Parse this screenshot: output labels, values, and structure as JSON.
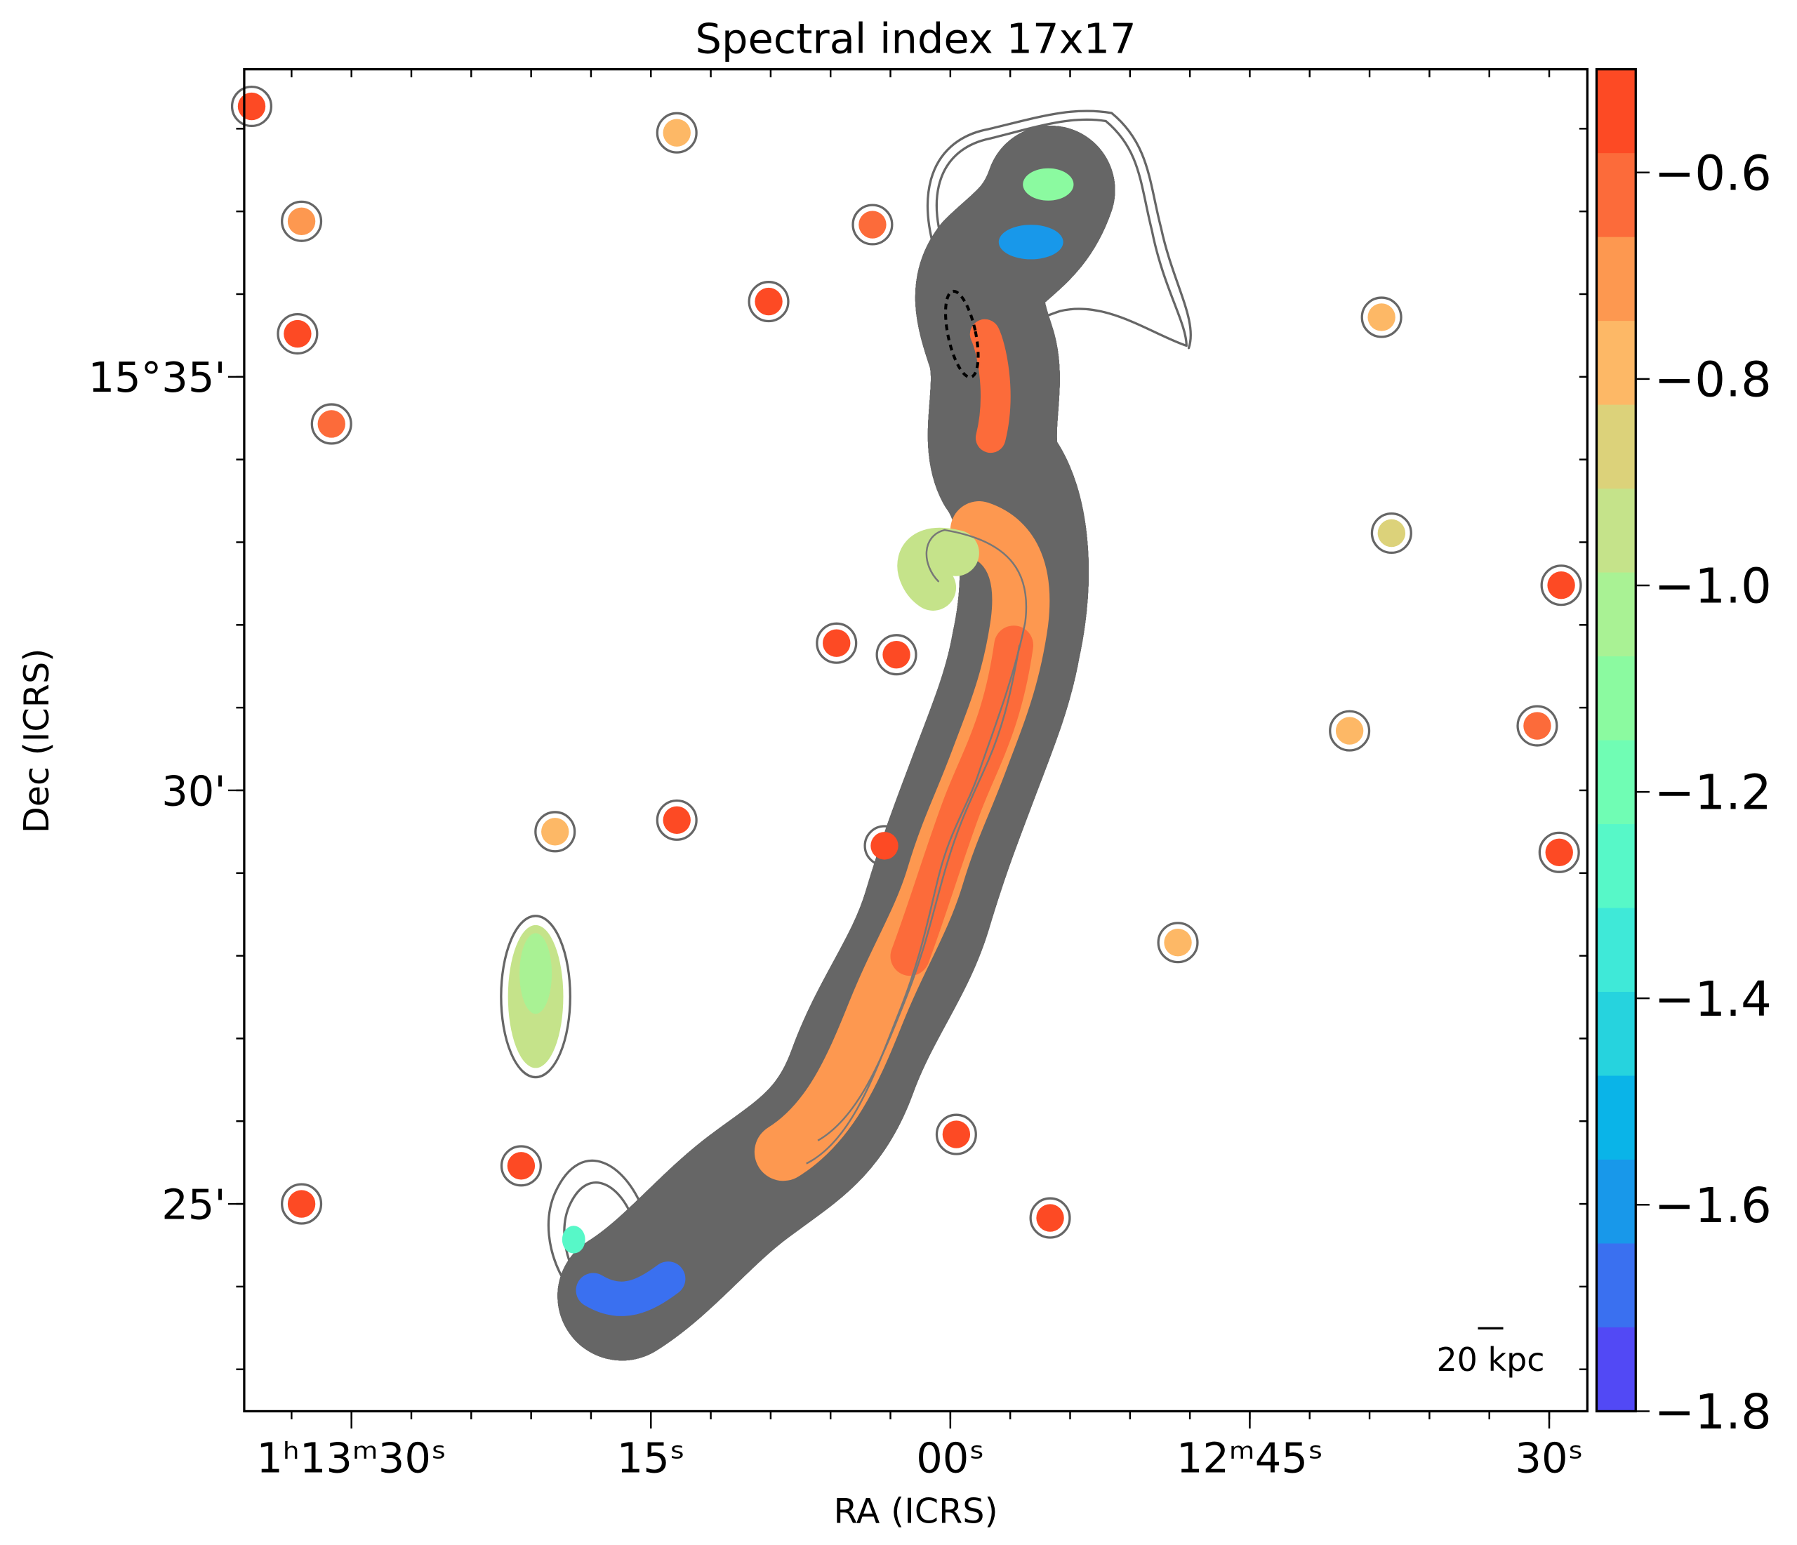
{
  "chart_data": {
    "type": "heatmap",
    "title": "Spectral index 17x17",
    "xlabel": "RA (ICRS)",
    "ylabel": "Dec (ICRS)",
    "x_ticks": [
      {
        "label": "1ʰ13ᵐ30ˢ",
        "ra_offset_s": 30
      },
      {
        "label": "15ˢ",
        "ra_offset_s": 15
      },
      {
        "label": "00ˢ",
        "ra_offset_s": 0
      },
      {
        "label": "12ᵐ45ˢ",
        "ra_offset_s": -15
      },
      {
        "label": "30ˢ",
        "ra_offset_s": -30
      }
    ],
    "y_ticks": [
      {
        "label": "15°35'",
        "dec_arcmin": 35
      },
      {
        "label": "30'",
        "dec_arcmin": 30
      },
      {
        "label": "25'",
        "dec_arcmin": 25
      }
    ],
    "x_range_ra_offset_s": [
      35.6,
      -31.7
    ],
    "y_range_dec_arcmin": [
      22.3,
      38.7
    ],
    "colorbar": {
      "range": [
        -1.8,
        -0.5
      ],
      "ticks": [
        "−0.6",
        "−0.8",
        "−1.0",
        "−1.2",
        "−1.4",
        "−1.6",
        "−1.8"
      ],
      "tick_values": [
        -0.6,
        -0.8,
        -1.0,
        -1.2,
        -1.4,
        -1.6,
        -1.8
      ],
      "colors": [
        "#fd4a24",
        "#fc6b3a",
        "#fd9850",
        "#fdb866",
        "#dcd27a",
        "#c5e38a",
        "#a9f294",
        "#8bfaa0",
        "#70fdb4",
        "#57f8c8",
        "#3fe9d8",
        "#26d3de",
        "#0ab4e8",
        "#1898ea",
        "#3a70f0",
        "#5249f5"
      ]
    },
    "compact_sources": [
      {
        "ra": 35.0,
        "dec": 38.27,
        "alpha": -0.55
      },
      {
        "ra": 32.5,
        "dec": 36.88,
        "alpha": -0.7
      },
      {
        "ra": 32.7,
        "dec": 35.52,
        "alpha": -0.55
      },
      {
        "ra": 31.0,
        "dec": 34.43,
        "alpha": -0.65
      },
      {
        "ra": 13.7,
        "dec": 37.95,
        "alpha": -0.75
      },
      {
        "ra": 3.9,
        "dec": 36.84,
        "alpha": -0.6
      },
      {
        "ra": 9.1,
        "dec": 35.91,
        "alpha": -0.55
      },
      {
        "ra": 5.7,
        "dec": 31.78,
        "alpha": -0.55
      },
      {
        "ra": 2.7,
        "dec": 31.64,
        "alpha": -0.55
      },
      {
        "ra": 13.7,
        "dec": 29.64,
        "alpha": -0.55
      },
      {
        "ra": 19.8,
        "dec": 29.5,
        "alpha": -0.75
      },
      {
        "ra": 3.3,
        "dec": 29.33,
        "alpha": -0.55
      },
      {
        "ra": -11.4,
        "dec": 28.16,
        "alpha": -0.75
      },
      {
        "ra": -20.0,
        "dec": 30.72,
        "alpha": -0.75
      },
      {
        "ra": -29.4,
        "dec": 30.78,
        "alpha": -0.6
      },
      {
        "ra": -30.5,
        "dec": 29.25,
        "alpha": -0.55
      },
      {
        "ra": -30.6,
        "dec": 32.48,
        "alpha": -0.55
      },
      {
        "ra": -22.1,
        "dec": 33.11,
        "alpha": -0.9
      },
      {
        "ra": -21.6,
        "dec": 35.72,
        "alpha": -0.75
      },
      {
        "ra": 32.5,
        "dec": 25.0,
        "alpha": -0.55
      },
      {
        "ra": 21.5,
        "dec": 25.46,
        "alpha": -0.55
      },
      {
        "ra": -5.0,
        "dec": 24.83,
        "alpha": -0.55
      },
      {
        "ra": -0.3,
        "dec": 25.84,
        "alpha": -0.55
      }
    ],
    "scale_bar": "20 kpc"
  }
}
